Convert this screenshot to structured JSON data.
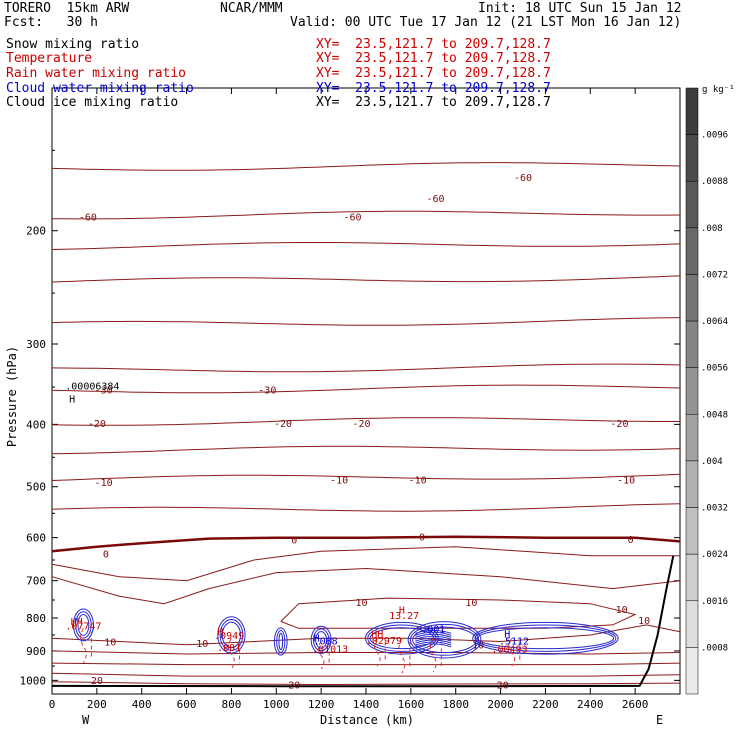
{
  "header": {
    "model": "TORERO  15km ARW",
    "center": "NCAR/MMM",
    "init": "Init: 18 UTC Sun 15 Jan 12",
    "fcst": "Fcst:   30 h",
    "valid": "Valid: 00 UTC Tue 17 Jan 12 (21 LST Mon 16 Jan 12)"
  },
  "fields": [
    {
      "name": "Snow mixing ratio",
      "xy": "XY=  23.5,121.7 to 209.7,128.7",
      "color": "#000000"
    },
    {
      "name": "Temperature",
      "xy": "XY=  23.5,121.7 to 209.7,128.7",
      "color": "#cc0000"
    },
    {
      "name": "Rain water mixing ratio",
      "xy": "XY=  23.5,121.7 to 209.7,128.7",
      "color": "#cc0000"
    },
    {
      "name": "Cloud water mixing ratio",
      "xy": "XY=  23.5,121.7 to 209.7,128.7",
      "color": "#0000cc"
    },
    {
      "name": "Cloud ice mixing ratio",
      "xy": "XY=  23.5,121.7 to 209.7,128.7",
      "color": "#000000"
    }
  ],
  "chart_data": {
    "type": "cross-section contour",
    "ylabel": "Pressure (hPa)",
    "xlabel": "Distance (km)",
    "x_ticks": [
      0,
      200,
      400,
      600,
      800,
      1000,
      1200,
      1400,
      1600,
      1800,
      2000,
      2200,
      2400,
      2600
    ],
    "y_ticks": [
      200,
      300,
      400,
      500,
      600,
      700,
      800,
      900,
      1000
    ],
    "xlim": [
      0,
      2800
    ],
    "ylim_log": [
      1050,
      120
    ],
    "west_label": "W",
    "east_label": "E",
    "colorbar": {
      "unit": "g kg⁻¹",
      "ticks": [
        ".0096",
        ".0088",
        ".008",
        ".0072",
        ".0064",
        ".0056",
        ".0048",
        ".004",
        ".0032",
        ".0024",
        ".0016",
        ".0008"
      ]
    },
    "temperature_isotherms": [
      {
        "value": -60,
        "p": [
          180,
          175,
          168,
          160
        ],
        "label_x": [
          160,
          1340,
          2100
        ]
      },
      {
        "value": -30,
        "p": [
          355,
          355,
          355,
          355
        ]
      },
      {
        "value": -20,
        "p": [
          400,
          398,
          396,
          396
        ]
      },
      {
        "value": -10,
        "p": [
          487,
          488,
          490,
          490
        ]
      },
      {
        "value": 0,
        "p": [
          630,
          605,
          598,
          600
        ]
      }
    ],
    "isotherm_labels": [
      {
        "text": "-60",
        "x": 160,
        "p": 190
      },
      {
        "text": "-60",
        "x": 1340,
        "p": 190
      },
      {
        "text": "-60",
        "x": 1710,
        "p": 178
      },
      {
        "text": "-60",
        "x": 2100,
        "p": 165
      },
      {
        "text": "-30",
        "x": 230,
        "p": 353
      },
      {
        "text": "-30",
        "x": 960,
        "p": 353
      },
      {
        "text": "-20",
        "x": 200,
        "p": 398
      },
      {
        "text": "-20",
        "x": 1030,
        "p": 398
      },
      {
        "text": "-20",
        "x": 1380,
        "p": 398
      },
      {
        "text": "-20",
        "x": 2530,
        "p": 398
      },
      {
        "text": "-10",
        "x": 230,
        "p": 492
      },
      {
        "text": "-10",
        "x": 1280,
        "p": 487
      },
      {
        "text": "-10",
        "x": 1630,
        "p": 487
      },
      {
        "text": "-10",
        "x": 2560,
        "p": 487
      },
      {
        "text": "0",
        "x": 1080,
        "p": 604
      },
      {
        "text": "0",
        "x": 1650,
        "p": 598
      },
      {
        "text": "0",
        "x": 2580,
        "p": 603
      },
      {
        "text": "0",
        "x": 240,
        "p": 635
      },
      {
        "text": "10",
        "x": 1380,
        "p": 755
      },
      {
        "text": "10",
        "x": 1870,
        "p": 755
      },
      {
        "text": "10",
        "x": 2540,
        "p": 775
      },
      {
        "text": "10",
        "x": 2640,
        "p": 805
      },
      {
        "text": "10",
        "x": 260,
        "p": 870
      },
      {
        "text": "10",
        "x": 670,
        "p": 875
      },
      {
        "text": "10",
        "x": 1900,
        "p": 880
      },
      {
        "text": "20",
        "x": 200,
        "p": 998
      },
      {
        "text": "20",
        "x": 1080,
        "p": 1015
      },
      {
        "text": "20",
        "x": 2010,
        "p": 1015
      }
    ],
    "markers": [
      {
        "text": "H",
        "x": 90,
        "p": 370,
        "color": "#000000"
      },
      {
        "text": ".00006384",
        "x": 180,
        "p": 353,
        "color": "#000000"
      },
      {
        "text": "H",
        "x": 1560,
        "p": 787,
        "color": "#cc0000"
      },
      {
        "text": "13.27",
        "x": 1570,
        "p": 803,
        "color": "#cc0000"
      },
      {
        "text": "HH",
        "x": 110,
        "p": 820,
        "color": "#cc0000"
      },
      {
        "text": ".07747",
        "x": 140,
        "p": 833,
        "color": "#cc0000"
      },
      {
        "text": "H",
        "x": 750,
        "p": 850,
        "color": "#cc0000"
      },
      {
        "text": ".0949",
        "x": 790,
        "p": 862,
        "color": "#cc0000"
      },
      {
        "text": ".001",
        "x": 790,
        "p": 900,
        "color": "#cc0000"
      },
      {
        "text": "H",
        "x": 1180,
        "p": 870,
        "color": "#0000cc"
      },
      {
        "text": ".088",
        "x": 1220,
        "p": 880,
        "color": "#0000cc"
      },
      {
        "text": ".01013",
        "x": 1240,
        "p": 905,
        "color": "#cc0000"
      },
      {
        "text": "HH",
        "x": 1450,
        "p": 858,
        "color": "#cc0000"
      },
      {
        "text": ".02979",
        "x": 1480,
        "p": 878,
        "color": "#cc0000"
      },
      {
        "text": ".001",
        "x": 1700,
        "p": 842,
        "color": "#0000cc"
      },
      {
        "text": "H",
        "x": 2030,
        "p": 858,
        "color": "#0000cc"
      },
      {
        "text": ".5112",
        "x": 2060,
        "p": 880,
        "color": "#0000cc"
      },
      {
        "text": ".00493",
        "x": 2040,
        "p": 905,
        "color": "#cc0000"
      }
    ]
  }
}
